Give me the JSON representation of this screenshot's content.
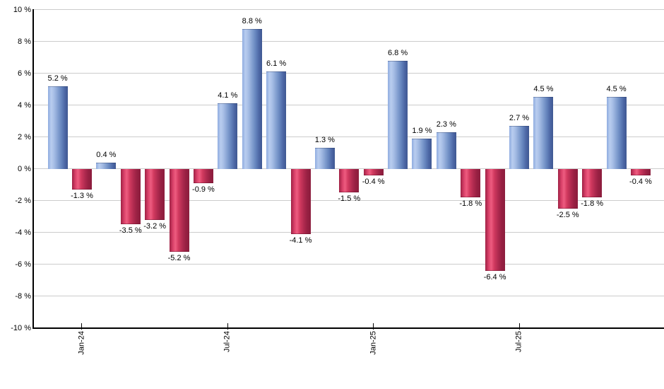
{
  "chart_data": {
    "type": "bar",
    "title": "",
    "xlabel": "",
    "ylabel": "",
    "values": [
      5.2,
      -1.3,
      0.4,
      -3.5,
      -3.2,
      -5.2,
      -0.9,
      4.1,
      8.8,
      6.1,
      -4.1,
      1.3,
      -1.5,
      -0.4,
      6.8,
      1.9,
      2.3,
      -1.8,
      -6.4,
      2.7,
      4.5,
      -2.5,
      -1.8,
      4.5,
      -0.4
    ],
    "value_labels": [
      "5.2 %",
      "-1.3 %",
      "0.4 %",
      "-3.5 %",
      "-3.2 %",
      "-5.2 %",
      "-0.9 %",
      "4.1 %",
      "8.8 %",
      "6.1 %",
      "-4.1 %",
      "1.3 %",
      "-1.5 %",
      "-0.4 %",
      "6.8 %",
      "1.9 %",
      "2.3 %",
      "-1.8 %",
      "-6.4 %",
      "2.7 %",
      "4.5 %",
      "-2.5 %",
      "-1.8 %",
      "4.5 %",
      "-0.4 %"
    ],
    "x_tick_labels": [
      {
        "index": 1,
        "label": "Jan-24"
      },
      {
        "index": 7,
        "label": "Jul-24"
      },
      {
        "index": 13,
        "label": "Jan-25"
      },
      {
        "index": 19,
        "label": "Jul-25"
      }
    ],
    "y_tick_labels": [
      "10 %",
      "8 %",
      "6 %",
      "4 %",
      "2 %",
      "0 %",
      "-2 %",
      "-4 %",
      "-6 %",
      "-8 %",
      "-10 %"
    ],
    "ylim": [
      -10,
      10
    ],
    "y_step": 2,
    "grid": "horizontal",
    "legend": "none",
    "colors": {
      "positive_bar": "#87a3d3",
      "positive_bar_highlight": "#b9cdef",
      "positive_bar_dark": "#3f5892",
      "negative_bar": "#d23a60",
      "negative_bar_highlight": "#ee5c80",
      "negative_bar_dark": "#8c1d3d",
      "gridline": "#cccccc",
      "axis": "#000000",
      "text": "#000000",
      "background": "#ffffff"
    }
  }
}
